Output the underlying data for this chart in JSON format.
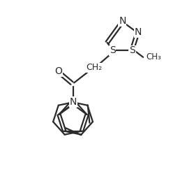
{
  "background": "#ffffff",
  "line_color": "#2a2a2a",
  "line_width": 1.6,
  "figsize": [
    2.78,
    2.72
  ],
  "dpi": 100,
  "xlim": [
    0,
    10
  ],
  "ylim": [
    0,
    10
  ]
}
